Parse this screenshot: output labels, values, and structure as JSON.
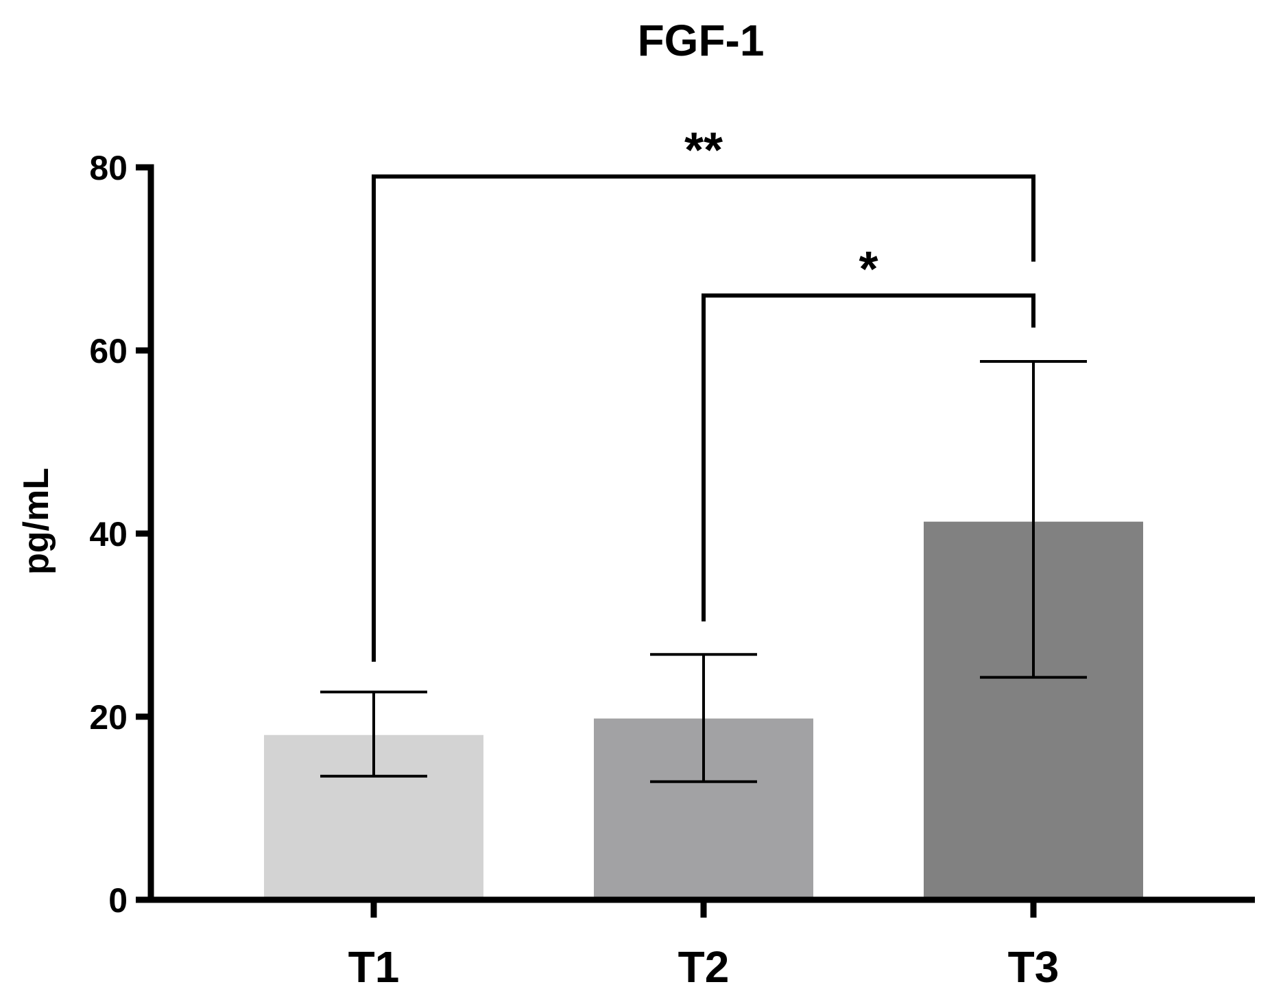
{
  "chart_data": {
    "type": "bar",
    "title": "FGF-1",
    "xlabel": "",
    "ylabel": "pg/mL",
    "ylim": [
      0,
      80
    ],
    "yticks": [
      0,
      20,
      40,
      60,
      80
    ],
    "categories": [
      "T1",
      "T2",
      "T3"
    ],
    "values": [
      18.0,
      19.8,
      41.3
    ],
    "error_upper": [
      22.7,
      26.8,
      58.8
    ],
    "error_lower": [
      13.5,
      12.9,
      24.3
    ],
    "colors": [
      "#d3d3d3",
      "#a2a2a4",
      "#818181"
    ],
    "grid": false,
    "legend": "none",
    "significance": [
      {
        "from": "T1",
        "to": "T3",
        "label": "**",
        "y": 79,
        "left_end": 26,
        "right_end": 69.7
      },
      {
        "from": "T2",
        "to": "T3",
        "label": "*",
        "y": 66,
        "left_end": 30.4,
        "right_end": 62.5
      }
    ]
  }
}
